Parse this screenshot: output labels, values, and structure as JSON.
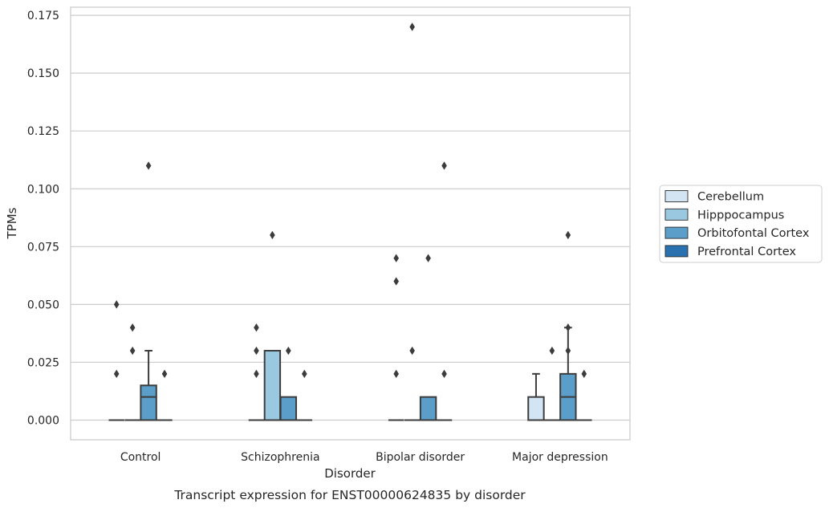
{
  "chart_data": {
    "type": "box",
    "title": "Transcript expression for ENST00000624835 by disorder",
    "xlabel": "Disorder",
    "ylabel": "TPMs",
    "ylim": [
      -0.0085,
      0.1785
    ],
    "yticks": [
      "0.000",
      "0.025",
      "0.050",
      "0.075",
      "0.100",
      "0.125",
      "0.150",
      "0.175"
    ],
    "ytick_values": [
      0,
      0.025,
      0.05,
      0.075,
      0.1,
      0.125,
      0.15,
      0.175
    ],
    "grid": "horizontal",
    "legend_position": "right",
    "categories": [
      "Control",
      "Schizophrenia",
      "Bipolar disorder",
      "Major depression"
    ],
    "series": [
      {
        "name": "Cerebellum",
        "color": "#d3e4f3",
        "boxes": [
          {
            "q1": 0,
            "median": 0,
            "q3": 0,
            "whisker_low": 0,
            "whisker_high": 0,
            "outliers": [
              0.02,
              0.05
            ]
          },
          {
            "q1": 0,
            "median": 0,
            "q3": 0,
            "whisker_low": 0,
            "whisker_high": 0,
            "outliers": [
              0.02,
              0.03,
              0.04
            ]
          },
          {
            "q1": 0,
            "median": 0,
            "q3": 0,
            "whisker_low": 0,
            "whisker_high": 0,
            "outliers": [
              0.02,
              0.06,
              0.07
            ]
          },
          {
            "q1": 0,
            "median": 0,
            "q3": 0.01,
            "whisker_low": 0,
            "whisker_high": 0.02,
            "outliers": []
          }
        ]
      },
      {
        "name": "Hipppocampus",
        "color": "#9ac8e0",
        "boxes": [
          {
            "q1": 0,
            "median": 0,
            "q3": 0,
            "whisker_low": 0,
            "whisker_high": 0,
            "outliers": [
              0.03,
              0.04
            ]
          },
          {
            "q1": 0,
            "median": 0,
            "q3": 0.03,
            "whisker_low": 0,
            "whisker_high": 0.03,
            "outliers": [
              0.08
            ]
          },
          {
            "q1": 0,
            "median": 0,
            "q3": 0,
            "whisker_low": 0,
            "whisker_high": 0,
            "outliers": [
              0.03,
              0.17
            ]
          },
          {
            "q1": 0,
            "median": 0,
            "q3": 0,
            "whisker_low": 0,
            "whisker_high": 0,
            "outliers": [
              0.03
            ]
          }
        ]
      },
      {
        "name": "Orbitofontal Cortex",
        "color": "#5a9ec9",
        "boxes": [
          {
            "q1": 0,
            "median": 0.01,
            "q3": 0.015,
            "whisker_low": 0,
            "whisker_high": 0.03,
            "outliers": [
              0.11
            ]
          },
          {
            "q1": 0,
            "median": 0,
            "q3": 0.01,
            "whisker_low": 0,
            "whisker_high": 0.01,
            "outliers": [
              0.03
            ]
          },
          {
            "q1": 0,
            "median": 0,
            "q3": 0.01,
            "whisker_low": 0,
            "whisker_high": 0.01,
            "outliers": [
              0.07
            ]
          },
          {
            "q1": 0,
            "median": 0.01,
            "q3": 0.02,
            "whisker_low": 0,
            "whisker_high": 0.04,
            "outliers": [
              0.03,
              0.04,
              0.08
            ]
          }
        ]
      },
      {
        "name": "Prefrontal Cortex",
        "color": "#2a71b0",
        "boxes": [
          {
            "q1": 0,
            "median": 0,
            "q3": 0,
            "whisker_low": 0,
            "whisker_high": 0,
            "outliers": [
              0.02
            ]
          },
          {
            "q1": 0,
            "median": 0,
            "q3": 0,
            "whisker_low": 0,
            "whisker_high": 0,
            "outliers": [
              0.02
            ]
          },
          {
            "q1": 0,
            "median": 0,
            "q3": 0,
            "whisker_low": 0,
            "whisker_high": 0,
            "outliers": [
              0.02,
              0.11
            ]
          },
          {
            "q1": 0,
            "median": 0,
            "q3": 0,
            "whisker_low": 0,
            "whisker_high": 0,
            "outliers": [
              0.02
            ]
          }
        ]
      }
    ]
  }
}
